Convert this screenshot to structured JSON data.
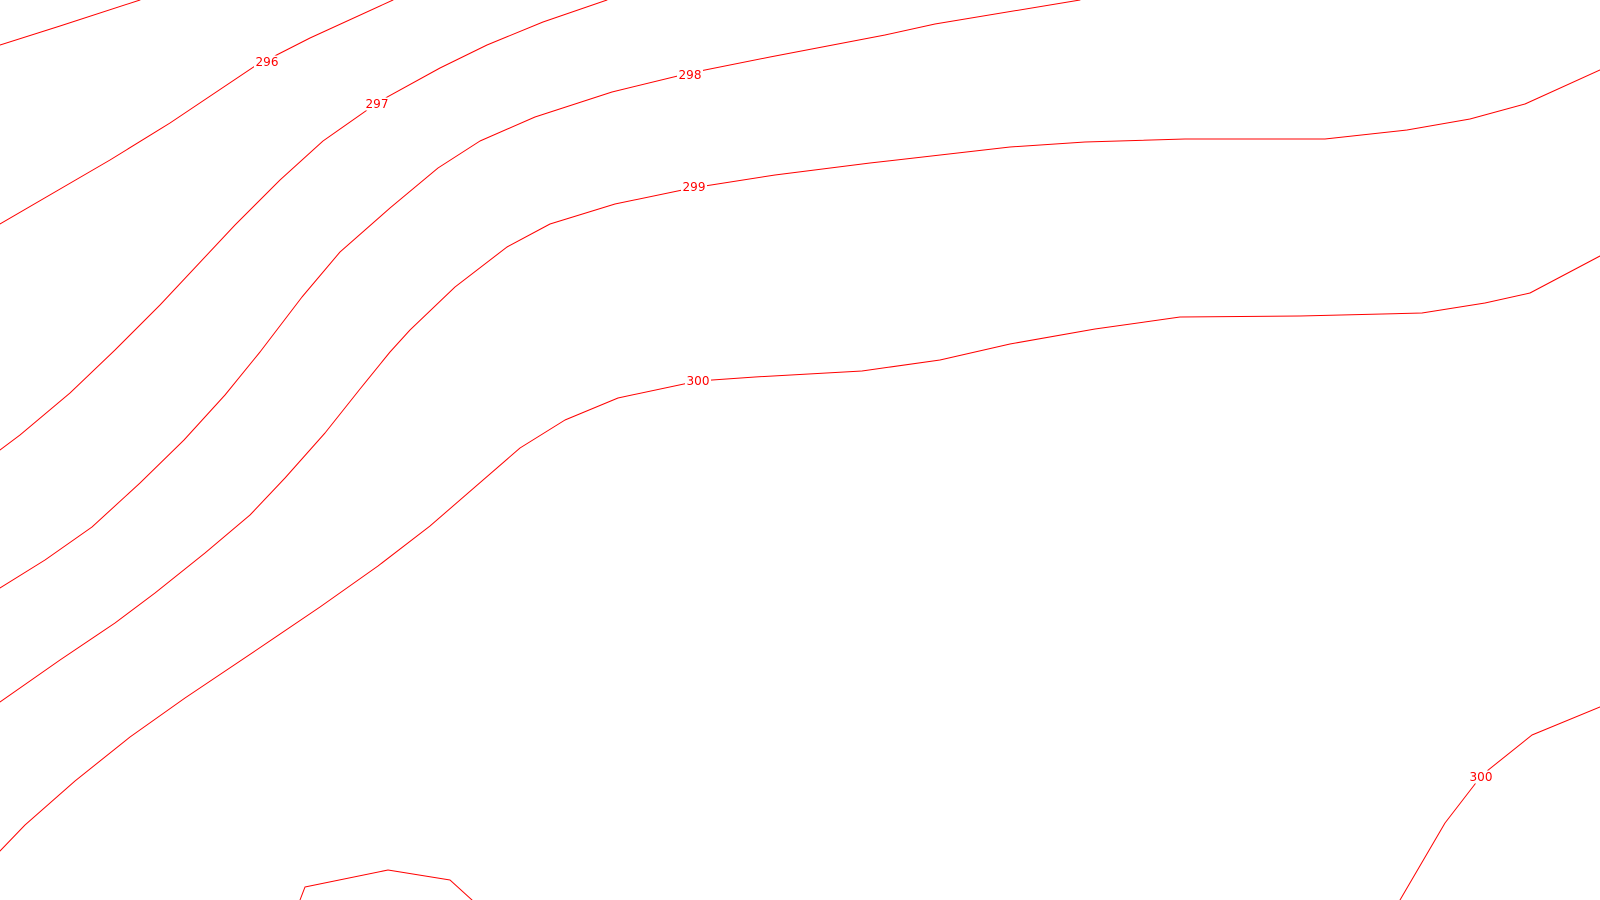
{
  "map": {
    "line_color": "#ff0000",
    "background_color": "#ffffff",
    "contours": [
      {
        "level": "",
        "labels": []
      },
      {
        "level": "296",
        "labels": [
          "296"
        ]
      },
      {
        "level": "297",
        "labels": [
          "297"
        ]
      },
      {
        "level": "298",
        "labels": [
          "298"
        ]
      },
      {
        "level": "299",
        "labels": [
          "299"
        ]
      },
      {
        "level": "300",
        "labels": [
          "300",
          "300"
        ]
      },
      {
        "level": "",
        "labels": []
      }
    ]
  }
}
